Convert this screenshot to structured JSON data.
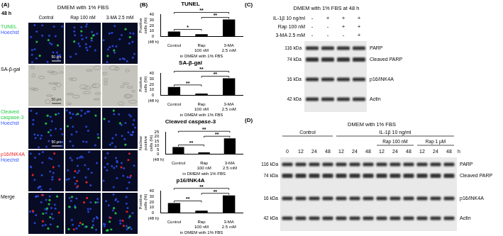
{
  "panel_labels": [
    "(A)",
    "(B)",
    "(C)",
    "(D)"
  ],
  "panel_a": {
    "time": "48 h",
    "condition": "DMEM with 1% FBS",
    "columns": [
      "Control",
      "Rap 100 nM",
      "3-MA 2.5 mM"
    ],
    "rows": [
      {
        "label": [
          {
            "text": "TUNEL",
            "color": "#22cc44"
          },
          {
            "text": "Hoechst",
            "color": "#3355ff"
          }
        ],
        "scale_bar": "50 μm"
      },
      {
        "label": [
          {
            "text": "SA-β-gal",
            "color": "#000000"
          }
        ],
        "scale_bar": "50 μm"
      },
      {
        "label": [
          {
            "text": "Cleaved caspase-3",
            "color": "#22cc44"
          },
          {
            "text": "Hoechst",
            "color": "#3355ff"
          }
        ],
        "scale_bar": "50 μm"
      },
      {
        "label": [
          {
            "text": "p16/INK4A",
            "color": "#ee2222"
          },
          {
            "text": "Hoechst",
            "color": "#3355ff"
          }
        ]
      },
      {
        "label": [
          {
            "text": "Merge",
            "color": "#000000"
          }
        ]
      }
    ]
  },
  "chart_data": [
    {
      "type": "bar",
      "title": "TUNEL",
      "y_label": "Positive cells (%)",
      "x_label": "in DMEM with 1% FBS",
      "annotations": [
        "(48 h)"
      ],
      "categories": [
        "Control",
        "Rap 100 nM",
        "3-MA 2.5 mM"
      ],
      "values": [
        9,
        4,
        31
      ],
      "color": "#000000",
      "ylim": [
        0,
        40
      ],
      "yticks": [
        0,
        10,
        20,
        30,
        40
      ],
      "grid": false,
      "significance": [
        {
          "pair": [
            "Control",
            "Rap 100 nM"
          ],
          "label": "*"
        },
        {
          "pair": [
            "Rap 100 nM",
            "3-MA 2.5 mM"
          ],
          "label": "**"
        },
        {
          "pair": [
            "Control",
            "3-MA 2.5 mM"
          ],
          "label": "**"
        }
      ]
    },
    {
      "type": "bar",
      "title": "SA-β-gal",
      "y_label": "Positive cells (%)",
      "x_label": "in DMEM with 1% FBS",
      "annotations": [
        "(48 h)"
      ],
      "categories": [
        "Control",
        "Rap 100 nM",
        "3-MA 2.5 mM"
      ],
      "values": [
        15,
        3,
        31
      ],
      "color": "#000000",
      "ylim": [
        0,
        40
      ],
      "yticks": [
        0,
        10,
        20,
        30,
        40
      ],
      "grid": false,
      "significance": [
        {
          "pair": [
            "Control",
            "Rap 100 nM"
          ],
          "label": "**"
        },
        {
          "pair": [
            "Rap 100 nM",
            "3-MA 2.5 mM"
          ],
          "label": "**"
        },
        {
          "pair": [
            "Control",
            "3-MA 2.5 mM"
          ],
          "label": "**"
        }
      ]
    },
    {
      "type": "bar",
      "title": "Cleaved caspase-3",
      "y_label": "Nuclear positive cells (%)",
      "x_label": "in DMEM with 1% FBS",
      "annotations": [
        "(48 h)"
      ],
      "categories": [
        "Control",
        "Rap 100 nM",
        "3-MA 2.5 mM"
      ],
      "values": [
        8,
        2,
        18
      ],
      "color": "#000000",
      "ylim": [
        0,
        25
      ],
      "yticks": [
        0,
        5,
        10,
        15,
        20,
        25
      ],
      "grid": false,
      "significance": [
        {
          "pair": [
            "Control",
            "Rap 100 nM"
          ],
          "label": "**"
        },
        {
          "pair": [
            "Rap 100 nM",
            "3-MA 2.5 mM"
          ],
          "label": "**"
        },
        {
          "pair": [
            "Control",
            "3-MA 2.5 mM"
          ],
          "label": "**"
        }
      ]
    },
    {
      "type": "bar",
      "title": "p16/INK4A",
      "y_label": "Positive cells (%)",
      "x_label": "in DMEM with 1% FBS",
      "annotations": [
        "(48 h)"
      ],
      "categories": [
        "Control",
        "Rap 100 nM",
        "3-MA 2.5 mM"
      ],
      "values": [
        18,
        4,
        32
      ],
      "color": "#000000",
      "ylim": [
        0,
        40
      ],
      "yticks": [
        0,
        10,
        20,
        30,
        40
      ],
      "grid": false,
      "significance": [
        {
          "pair": [
            "Control",
            "Rap 100 nM"
          ],
          "label": "**"
        },
        {
          "pair": [
            "Rap 100 nM",
            "3-MA 2.5 mM"
          ],
          "label": "**"
        },
        {
          "pair": [
            "Control",
            "3-MA 2.5 mM"
          ],
          "label": "**"
        }
      ]
    }
  ],
  "panel_c": {
    "title": "DMEM with 1% FBS at 48 h",
    "treatments": [
      {
        "label": "IL-1β 10 ng/ml",
        "lanes": [
          "-",
          "+",
          "+",
          "+"
        ]
      },
      {
        "label": "Rap 100 nM",
        "lanes": [
          "-",
          "-",
          "+",
          "+"
        ]
      },
      {
        "label": "3-MA 2.5 mM",
        "lanes": [
          "-",
          "-",
          "-",
          "+"
        ]
      }
    ],
    "bands": [
      {
        "name": "PARP",
        "mw": "116 kDa"
      },
      {
        "name": "Cleaved PARP",
        "mw": "74 kDa"
      },
      {
        "name": "p16/INK4A",
        "mw": "16 kDa"
      },
      {
        "name": "Actin",
        "mw": "42 kDa"
      }
    ]
  },
  "panel_d": {
    "title": "DMEM with 1% FBS",
    "groups": [
      {
        "label": "Control",
        "lanes": 4
      },
      {
        "label": "IL-1β 10 ng/ml",
        "lanes": 9,
        "subgroups": [
          {
            "label": null,
            "lanes": 3
          },
          {
            "label": "Rap 100 nM",
            "lanes": 3
          },
          {
            "label": "Rap 1 μM",
            "lanes": 3
          }
        ]
      }
    ],
    "time_points": [
      0,
      12,
      24,
      48,
      12,
      24,
      48,
      12,
      24,
      48,
      12,
      24,
      48
    ],
    "time_unit": "h",
    "bands": [
      {
        "name": "PARP",
        "mw": "116 kDa"
      },
      {
        "name": "Cleaved PARP",
        "mw": "74 kDa"
      },
      {
        "name": "p16/INK4A",
        "mw": "16 kDa"
      },
      {
        "name": "Actin",
        "mw": "42 kDa"
      }
    ]
  }
}
